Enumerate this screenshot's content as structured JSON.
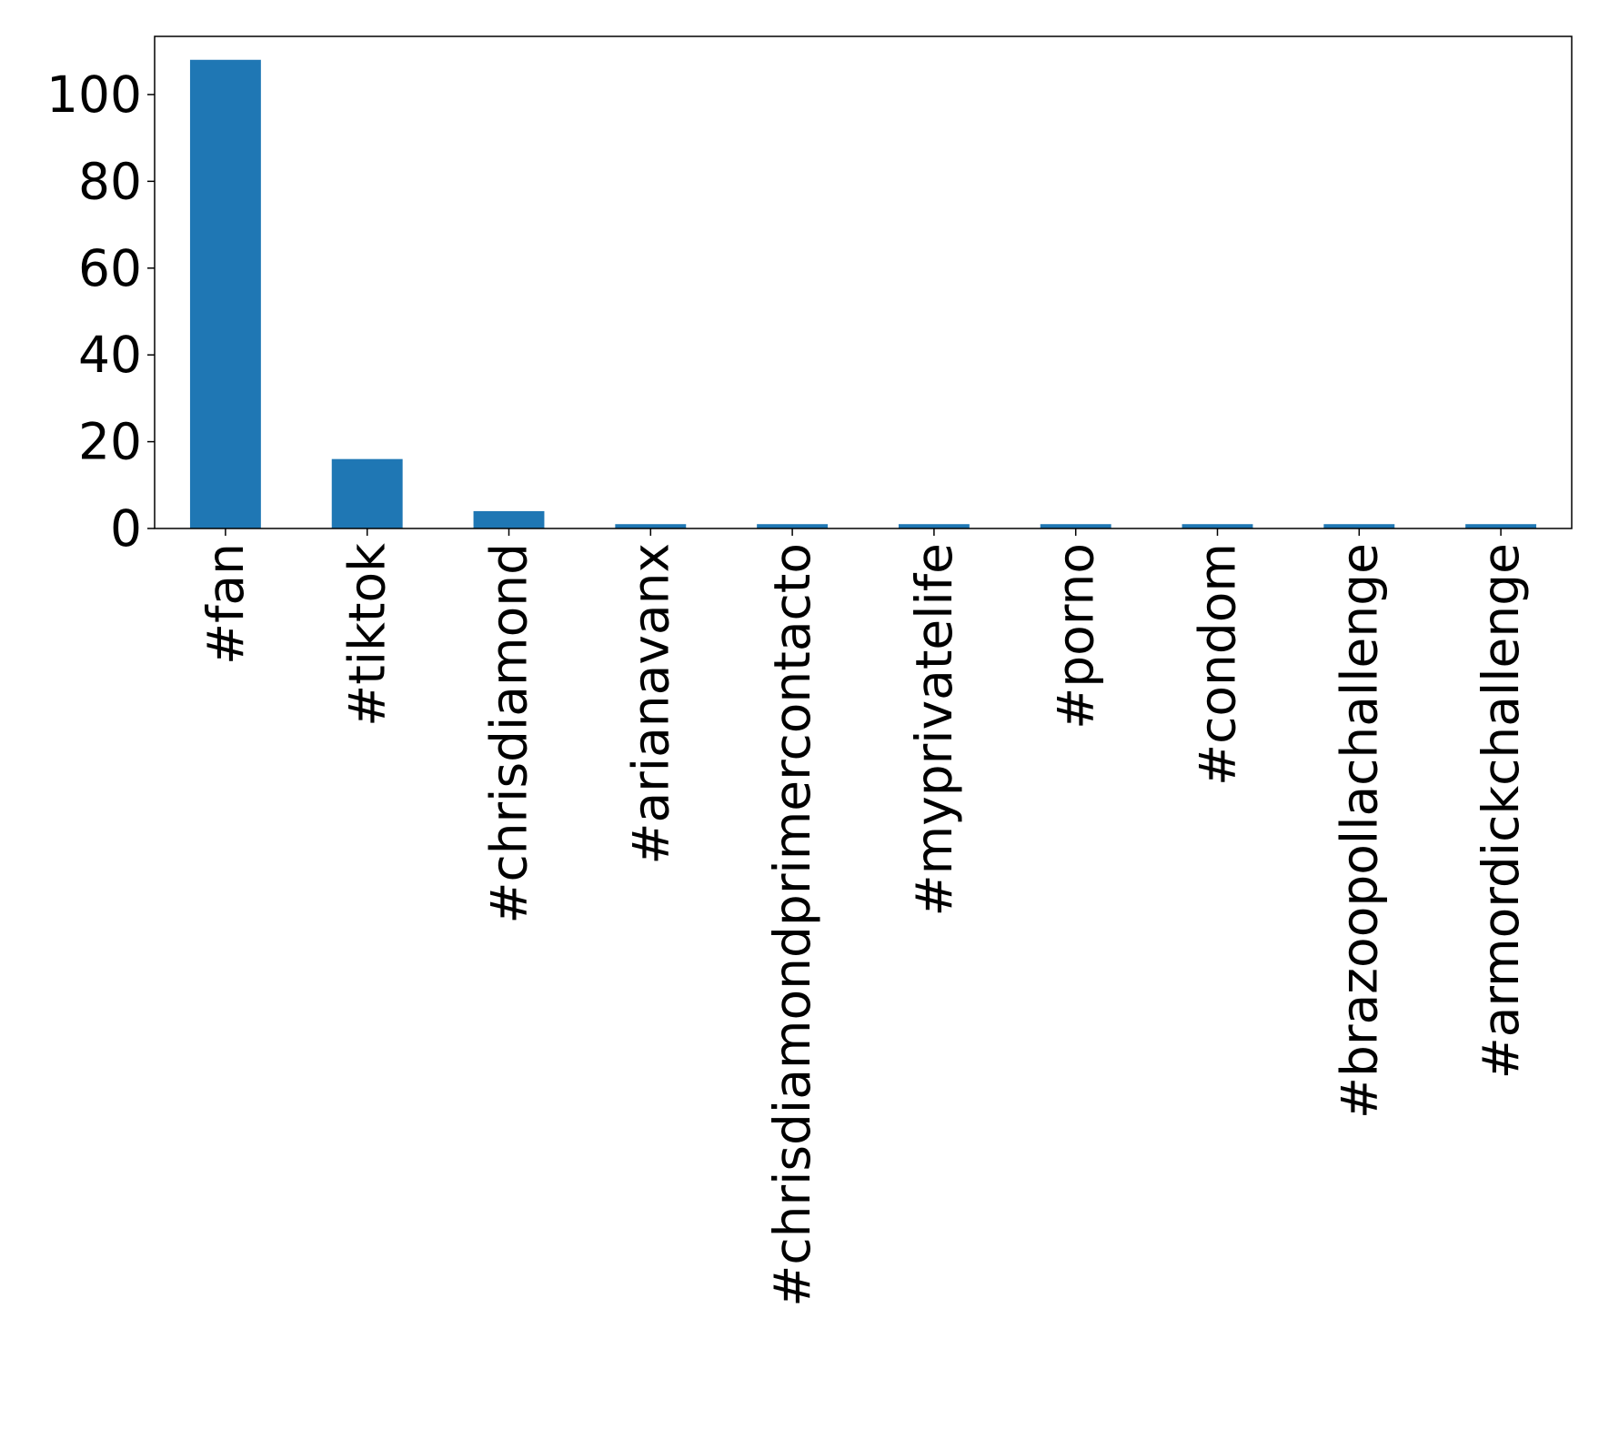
{
  "chart_data": {
    "type": "bar",
    "title": "",
    "xlabel": "",
    "ylabel": "",
    "categories": [
      "#fan",
      "#tiktok",
      "#chrisdiamond",
      "#arianavanx",
      "#chrisdiamondprimercontacto",
      "#myprivatelife",
      "#porno",
      "#condom",
      "#brazoopollachallenge",
      "#armordickchallenge"
    ],
    "values": [
      108,
      16,
      4,
      1,
      1,
      1,
      1,
      1,
      1,
      1
    ],
    "ylim": [
      0,
      113.4
    ],
    "yticks": [
      0,
      20,
      40,
      60,
      80,
      100
    ],
    "grid": false,
    "legend": "none",
    "bar_color": "#1f77b4"
  }
}
